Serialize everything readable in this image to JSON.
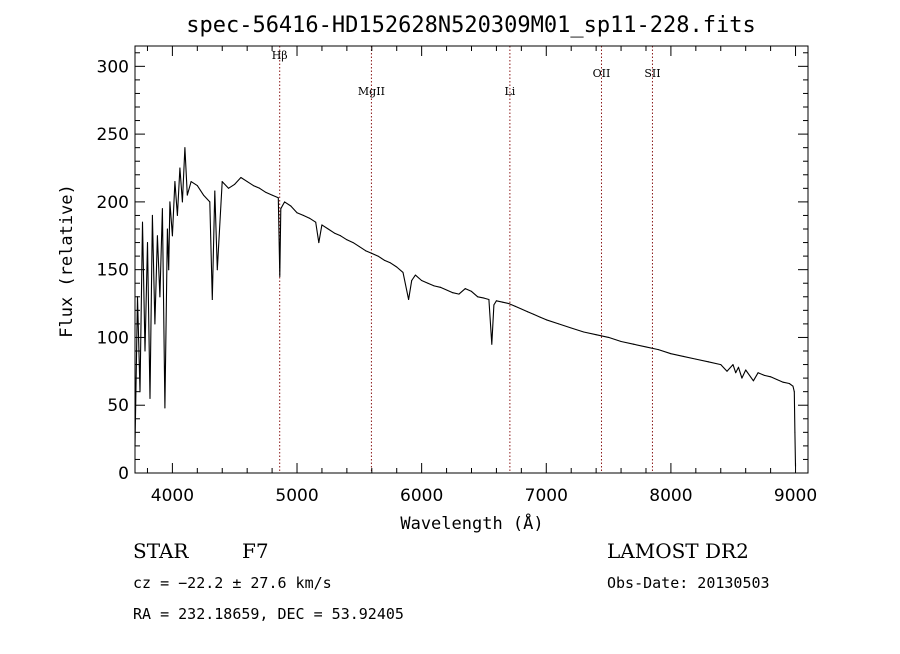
{
  "chart_data": {
    "type": "line",
    "title": "spec-56416-HD152628N520309M01_sp11-228.fits",
    "xlabel": "Wavelength (Å)",
    "ylabel": "Flux (relative)",
    "xlim": [
      3700,
      9100
    ],
    "ylim": [
      0,
      315
    ],
    "xticks": [
      4000,
      5000,
      6000,
      7000,
      8000,
      9000
    ],
    "xtick_labels": [
      "4000",
      "5000",
      "6000",
      "7000",
      "8000",
      "9000"
    ],
    "yticks": [
      0,
      50,
      100,
      150,
      200,
      250,
      300
    ],
    "ytick_labels": [
      "0",
      "50",
      "100",
      "150",
      "200",
      "250",
      "300"
    ],
    "grid": false,
    "series": [
      {
        "color": "#000000",
        "x": [
          3700,
          3720,
          3740,
          3760,
          3780,
          3800,
          3820,
          3840,
          3860,
          3880,
          3900,
          3920,
          3940,
          3960,
          3970,
          3980,
          4000,
          4020,
          4040,
          4060,
          4080,
          4100,
          4120,
          4150,
          4200,
          4250,
          4300,
          4320,
          4340,
          4360,
          4400,
          4450,
          4500,
          4550,
          4600,
          4650,
          4700,
          4750,
          4800,
          4850,
          4862,
          4870,
          4900,
          4950,
          5000,
          5050,
          5100,
          5150,
          5175,
          5200,
          5250,
          5300,
          5350,
          5400,
          5450,
          5500,
          5550,
          5600,
          5650,
          5700,
          5750,
          5800,
          5850,
          5895,
          5920,
          5950,
          6000,
          6050,
          6100,
          6150,
          6200,
          6250,
          6300,
          6350,
          6400,
          6450,
          6500,
          6540,
          6563,
          6580,
          6600,
          6650,
          6700,
          6750,
          6800,
          6850,
          6900,
          6950,
          7000,
          7100,
          7200,
          7300,
          7400,
          7500,
          7600,
          7700,
          7800,
          7900,
          8000,
          8100,
          8200,
          8300,
          8400,
          8450,
          8498,
          8520,
          8542,
          8570,
          8600,
          8662,
          8700,
          8750,
          8800,
          8850,
          8900,
          8950,
          8980,
          8990,
          8995,
          9000
        ],
        "y": [
          20,
          130,
          60,
          185,
          90,
          170,
          55,
          190,
          110,
          175,
          130,
          195,
          48,
          180,
          150,
          200,
          175,
          215,
          190,
          225,
          200,
          240,
          205,
          215,
          212,
          205,
          200,
          128,
          208,
          150,
          215,
          210,
          213,
          218,
          215,
          212,
          210,
          207,
          205,
          203,
          145,
          195,
          200,
          197,
          192,
          190,
          188,
          185,
          170,
          183,
          180,
          177,
          175,
          172,
          170,
          167,
          164,
          162,
          160,
          157,
          155,
          152,
          148,
          128,
          142,
          146,
          142,
          140,
          138,
          137,
          135,
          133,
          132,
          136,
          134,
          130,
          129,
          128,
          95,
          124,
          127,
          126,
          125,
          123,
          121,
          119,
          117,
          115,
          113,
          110,
          107,
          104,
          102,
          100,
          97,
          95,
          93,
          91,
          88,
          86,
          84,
          82,
          80,
          75,
          80,
          74,
          78,
          70,
          76,
          68,
          74,
          72,
          71,
          69,
          67,
          66,
          64,
          60,
          30,
          5
        ]
      }
    ],
    "line_markers": [
      {
        "label": "Hβ",
        "x": 4861,
        "color": "#8b1a1a"
      },
      {
        "label": "MgII",
        "x": 5597,
        "color": "#8b1a1a"
      },
      {
        "label": "Li",
        "x": 6708,
        "color": "#8b1a1a"
      },
      {
        "label": "OII",
        "x": 7443,
        "color": "#8b1a1a"
      },
      {
        "label": "SII",
        "x": 7852,
        "color": "#8b1a1a"
      }
    ]
  },
  "info": {
    "object_class": "STAR",
    "subclass": "F7",
    "survey": "LAMOST DR2",
    "velocity": "cz = −22.2 ± 27.6 km/s",
    "obs_date": "Obs-Date: 20130503",
    "coords": "RA = 232.18659, DEC =  53.92405"
  }
}
